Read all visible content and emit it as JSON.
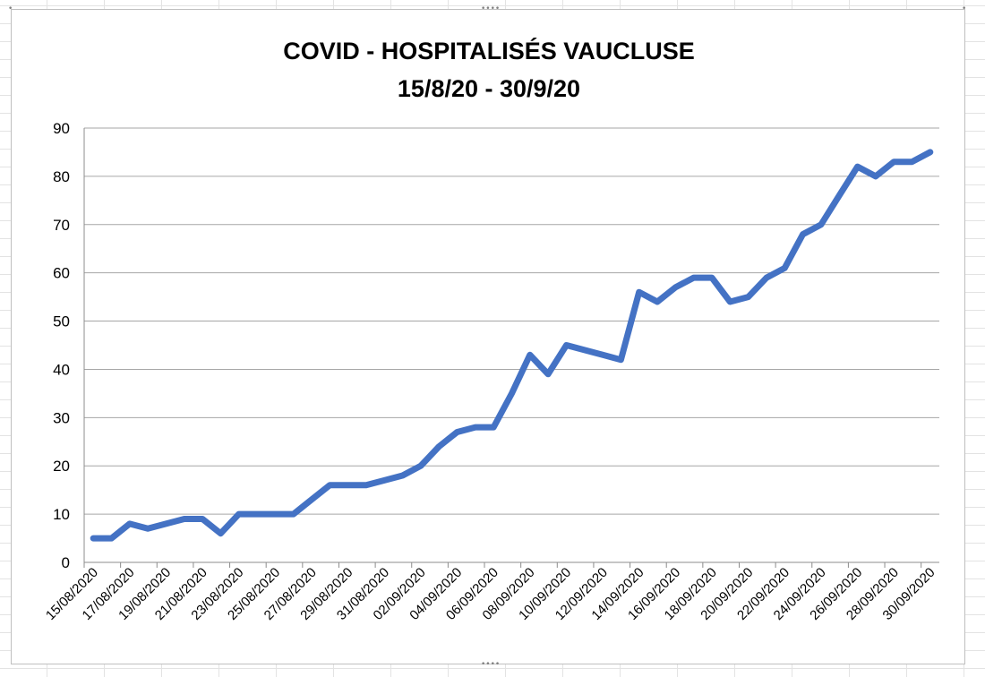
{
  "chart_data": {
    "type": "line",
    "title": "COVID - HOSPITALISÉS VAUCLUSE",
    "subtitle": "15/8/20 - 30/9/20",
    "xlabel": "",
    "ylabel": "",
    "ylim": [
      0,
      90
    ],
    "y_ticks": [
      0,
      10,
      20,
      30,
      40,
      50,
      60,
      70,
      80,
      90
    ],
    "grid": true,
    "legend": "none",
    "x": [
      "15/08/2020",
      "16/08/2020",
      "17/08/2020",
      "18/08/2020",
      "19/08/2020",
      "20/08/2020",
      "21/08/2020",
      "22/08/2020",
      "23/08/2020",
      "24/08/2020",
      "25/08/2020",
      "26/08/2020",
      "27/08/2020",
      "28/08/2020",
      "29/08/2020",
      "30/08/2020",
      "31/08/2020",
      "01/09/2020",
      "02/09/2020",
      "03/09/2020",
      "04/09/2020",
      "05/09/2020",
      "06/09/2020",
      "07/09/2020",
      "08/09/2020",
      "09/09/2020",
      "10/09/2020",
      "11/09/2020",
      "12/09/2020",
      "13/09/2020",
      "14/09/2020",
      "15/09/2020",
      "16/09/2020",
      "17/09/2020",
      "18/09/2020",
      "19/09/2020",
      "20/09/2020",
      "21/09/2020",
      "22/09/2020",
      "23/09/2020",
      "24/09/2020",
      "25/09/2020",
      "26/09/2020",
      "27/09/2020",
      "28/09/2020",
      "29/09/2020",
      "30/09/2020"
    ],
    "x_tick_labels": [
      "15/08/2020",
      "17/08/2020",
      "19/08/2020",
      "21/08/2020",
      "23/08/2020",
      "25/08/2020",
      "27/08/2020",
      "29/08/2020",
      "31/08/2020",
      "02/09/2020",
      "04/09/2020",
      "06/09/2020",
      "08/09/2020",
      "10/09/2020",
      "12/09/2020",
      "14/09/2020",
      "16/09/2020",
      "18/09/2020",
      "20/09/2020",
      "22/09/2020",
      "24/09/2020",
      "26/09/2020",
      "28/09/2020",
      "30/09/2020"
    ],
    "series": [
      {
        "values": [
          5,
          5,
          8,
          7,
          8,
          9,
          9,
          6,
          10,
          10,
          10,
          10,
          13,
          16,
          16,
          16,
          17,
          18,
          20,
          24,
          27,
          28,
          28,
          35,
          43,
          39,
          45,
          44,
          43,
          42,
          56,
          54,
          57,
          59,
          59,
          54,
          55,
          59,
          61,
          68,
          70,
          76,
          82,
          80,
          83,
          83,
          85
        ],
        "color": "#4472C4"
      }
    ]
  }
}
